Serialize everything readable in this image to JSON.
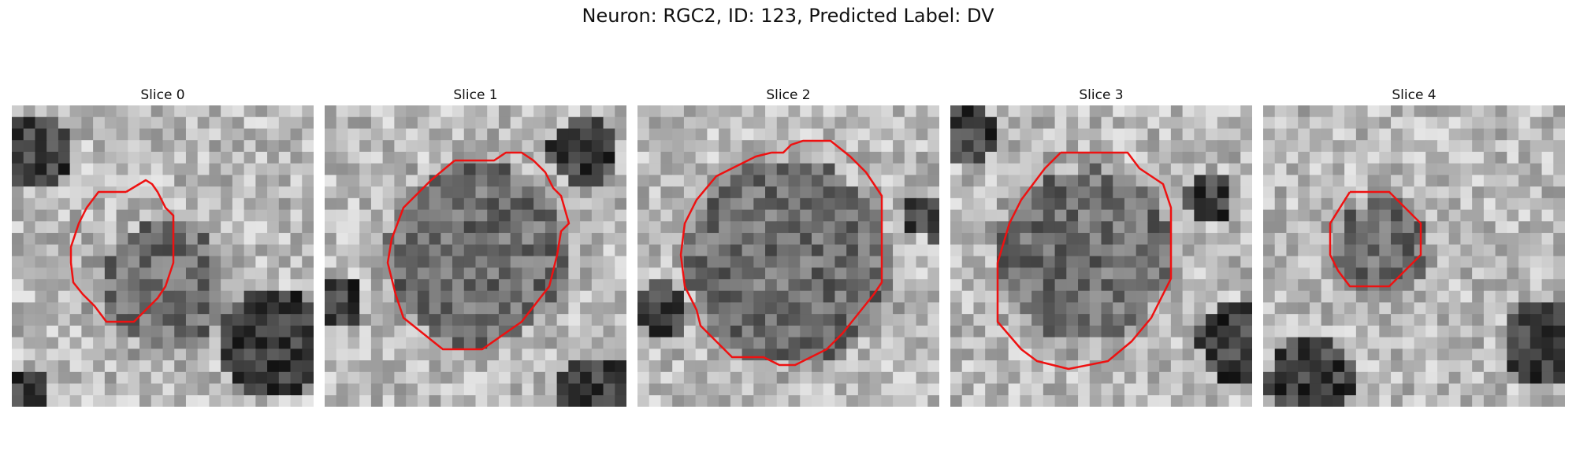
{
  "figure": {
    "title": "Neuron: RGC2, ID: 123, Predicted Label: DV"
  },
  "colors": {
    "contour": "#ee1111",
    "background": "#ffffff"
  },
  "slices": [
    {
      "title": "Slice 0"
    },
    {
      "title": "Slice 1"
    },
    {
      "title": "Slice 2"
    },
    {
      "title": "Slice 3"
    },
    {
      "title": "Slice 4"
    }
  ]
}
